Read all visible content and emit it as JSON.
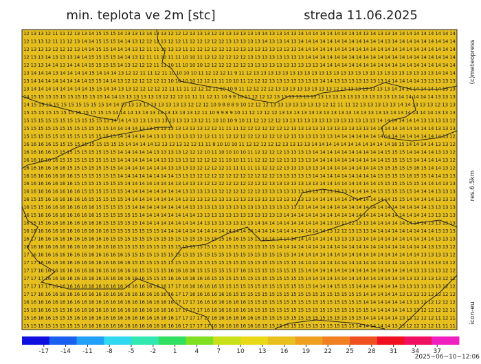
{
  "header": {
    "title": "min. teplota ve 2m [stc]",
    "date": "streda 11.06.2025"
  },
  "side": {
    "copyright": "(c)meteopress",
    "resolution": "res.6.5km",
    "model": "icon-eu"
  },
  "footer": {
    "timestamp": "2025−06−10−12:06"
  },
  "map": {
    "fill": "#e6bf1e",
    "rows": [
      "12 13 13 12 11 11 12 13 13 14 15 15 15 14 13 13 13 14 13 13 12 12 12 13 13 13 12 13 13 13 13 13 14 14 13 13 14 13 14 14 14 14 14 14 14 14 14 13 14 13 13 14 14 14 14 14 14 14 14 14",
      "12 13 13 12 11 11 12 13 14 14 15 15 15 14 14 13 12 12 12 13 12 12 11 12 12 12 12 12 13 13 13 13 13 14 13 13 14 13 14 14 14 14 14 14 14 14 14 14 14 14 13 14 14 14 14 14 14 14 14 14",
      "12 13 13 13 12 12 12 13 14 14 15 15 14 14 14 13 12 11 11 10 13 13 11 11 12 12 12 12 12 13 13 13 13 13 13 13 13 13 14 14 14 14 14 14 14 14 14 14 14 14 14 14 14 14 14 14 14 14 14 14",
      "12 13 13 14 13 13 13 14 14 15 15 15 15 14 14 13 12 11 11 10 11 11 10 10 11 12 12 12 12 12 12 13 13 13 13 13 13 13 13 14 14 14 14 14 14 14 14 14 14 14 14 14 14 14 14 14 14 14 14 14",
      "12 13 13 14 14 13 14 14 14 15 15 15 15 14 13 12 12 12 11 11 10 11 10 10 10 12 12 12 12 12 12 13 13 13 13 13 13 13 13 13 13 14 14 14 14 14 14 14 14 14 14 14 14 14 14 14 14 14 14 14",
      "13 14 14 14 13 14 14 14 14 15 14 14 14 13 12 12 11 11 12 11 10 10 10 10 11 12 12 12 11 9 11 12 13 13 13 13 13 13 13 13 13 13 13 13 13 13 13 13 13 13 13 13 13 13 13 13 13 14 14 14",
      "13 14 14 14 14 14 14 14 14 15 15 14 14 13 12 12 12 12 12 11 10 10 10 10 12 12 11 11 10 10 11 12 12 12 13 13 13 13 13 13 13 14 14 13 13 13 13 13 13 13 14 14 14 14 14 13 13 13 13 13",
      "13 14 14 14 14 14 14 14 14 15 15 14 14 13 13 12 12 12 12 12 11 11 11 12 12 12 11 10 10 9 11 12 12 12 12 13 13 13 13 13 13 13 13 12 13 13 13 13 13 13 13 14 14 14 14 14 14 14 13 13",
      "14 15 15 15 15 15 15 15 15 15 15 14 14 13 13 13 13 13 13 12 12 12 11 11 11 12 11 10 9 9 10 11 12 12 12 13 13 13 13 13 13 13 13 13 13 13 13 13 13 13 13 13 14 14 14 14 14 13 13 13",
      "14 15 15 15 15 15 15 15 15 15 15 14 14 13 13 13 13 13 13 13 13 13 12 12 12 10 9 8 8 8 9 10 12 12 12 13 13 13 13 13 13 13 12 12 11 11 12 13 13 13 13 13 14 14 13 13 13 12 13 13",
      "15 15 15 15 15 15 15 15 15 15 15 15 14 14 14 13 13 13 13 13 13 13 13 12 11 10 9 9 8 9 10 11 12 12 12 12 13 13 13 13 13 13 13 13 13 13 13 13 13 13 13 13 13 14 14 14 14 13 13 13",
      "15 15 15 15 15 15 15 15 15 15 15 15 14 14 14 13 13 13 13 13 13 13 13 13 12 11 10 10 10 9 10 11 12 12 12 12 13 13 13 13 13 13 13 13 13 13 13 13 13 14 14 14 14 14 14 13 13 13 13 12",
      "15 15 15 15 15 15 15 15 15 15 15 15 14 14 14 14 13 13 13 13 13 13 13 13 13 12 12 11 11 11 12 12 12 12 12 12 12 13 13 13 13 13 13 13 13 13 13 13 14 14 14 14 14 14 14 14 14 13 13 13",
      "15 15 15 15 15 15 15 15 15 15 15 15 15 14 14 14 14 14 13 13 13 13 13 13 12 12 11 11 12 12 12 12 12 12 12 12 12 13 13 13 13 13 13 14 14 14 14 14 14 14 14 14 14 14 14 14 14 14 13 12",
      "16 16 16 16 15 15 15 15 15 15 15 15 15 15 14 14 14 14 13 13 13 13 12 12 11 11 8 10 10 10 11 12 12 12 12 12 13 13 13 13 14 14 14 14 14 14 14 14 14 14 14 16 15 14 14 14 14 13 13 12",
      "16 16 16 16 15 15 15 15 15 15 15 15 15 14 14 14 14 14 13 13 13 13 12 12 12 10 11 10 10 10 10 11 12 12 12 12 13 13 13 13 14 14 14 14 14 14 14 14 14 14 15 15 15 14 14 14 14 13 13 12",
      "16 16 16 16 16 15 15 15 15 15 15 15 15 14 14 14 14 14 14 13 13 13 13 12 12 12 12 11 10 10 11 11 12 12 12 12 13 13 13 13 14 14 14 14 14 14 14 14 14 14 15 15 15 15 14 14 14 14 13 12",
      "16 16 16 16 16 16 15 15 15 15 15 15 15 14 14 14 14 14 14 14 13 13 13 13 12 12 12 12 11 11 11 11 11 12 12 12 13 13 13 13 13 14 14 14 14 14 14 14 14 15 15 15 15 15 16 15 14 14 13 12",
      "16 16 16 16 16 16 16 15 15 15 15 15 15 14 14 14 14 14 14 14 14 13 13 13 12 12 12 12 12 12 12 12 12 12 12 13 13 13 13 13 14 14 14 14 14 14 14 14 14 15 15 15 15 16 15 15 14 14 13 13",
      "16 16 16 16 16 16 16 15 15 15 15 15 15 15 14 14 14 14 14 14 14 13 13 13 13 12 12 12 12 12 12 12 12 12 13 13 13 13 13 13 13 14 14 14 14 14 14 14 14 15 15 15 15 15 15 14 14 14 13 13",
      "16 16 16 16 16 16 16 16 15 15 15 15 15 15 14 14 14 14 14 14 14 14 13 13 13 13 13 12 12 12 12 12 12 13 13 13 13 13 13 13 13 13 13 13 13 14 14 14 14 15 15 15 15 15 14 14 14 13 13 13",
      "16 15 15 16 16 16 16 16 16 15 15 15 15 15 14 14 14 14 14 14 14 14 13 13 13 13 13 13 13 13 13 13 13 13 13 13 13 13 13 13 14 14 14 14 14 14 14 14 14 14 14 15 15 14 14 14 14 13 13 13",
      "16 15 15 16 16 16 16 16 16 16 15 15 15 15 15 14 14 14 14 14 14 14 14 13 13 13 13 13 13 13 13 13 13 13 13 13 13 13 13 14 14 14 14 14 14 14 14 14 14 14 14 14 14 14 14 14 13 13 13 13",
      "16 15 16 16 16 16 16 16 16 16 15 15 15 15 15 15 14 14 14 14 14 14 14 14 13 13 13 13 13 13 13 13 13 13 13 13 14 14 14 14 14 14 14 14 14 14 14 14 14 14 14 14 14 14 14 14 13 13 13 13",
      "16 15 15 16 16 16 16 16 16 16 16 15 15 15 15 15 14 14 14 14 14 14 14 14 14 13 13 13 13 13 13 13 14 14 14 14 14 14 14 14 14 14 13 10 11 12 13 13 14 14 14 14 14 14 14 14 13 13 13 13",
      "16 16 16 16 16 16 16 16 16 16 16 16 15 15 15 15 15 15 15 14 14 14 14 14 14 14 14 14 14 14 14 14 14 14 14 14 14 14 14 14 14 14 13 12 12 13 13 13 14 14 14 14 14 14 14 14 14 13 13 13",
      "16 17 16 16 16 16 16 16 16 16 16 16 15 15 15 15 15 15 15 15 15 15 15 15 15 15 15 15 16 16 15 15 15 14 14 14 14 14 14 14 14 14 14 13 13 13 13 14 14 14 14 14 14 14 14 14 14 13 13 13",
      "16 16 16 16 16 16 16 16 16 16 16 16 16 15 15 15 15 15 15 15 15 15 15 15 15 15 15 15 15 15 15 15 15 15 15 14 14 14 14 14 14 14 14 14 14 14 14 14 14 14 14 14 14 14 14 14 13 13 13 12",
      "17 16 16 16 16 16 16 16 16 16 16 16 16 16 15 15 15 15 15 15 15 15 15 15 15 15 15 15 15 15 15 15 15 15 15 15 15 14 14 14 14 14 14 14 14 14 14 14 14 14 14 14 14 14 14 13 13 13 13 12",
      "17 17 16 16 16 16 16 16 16 16 16 16 16 16 16 15 15 15 15 15 15 15 15 15 15 15 15 15 15 15 15 15 15 15 15 15 15 15 14 14 14 14 14 14 14 14 14 14 14 14 14 14 14 14 13 13 13 13 13 12",
      "17 17 16 16 16 16 16 16 16 16 16 16 16 16 16 16 15 15 15 15 16 16 16 16 15 15 15 15 15 17 16 15 15 15 15 15 15 15 15 14 14 14 14 14 14 14 14 14 14 14 14 14 14 14 13 13 13 13 12 12",
      "17 17 17 16 16 16 16 16 16 16 16 16 16 16 16 16 16 15 15 15 16 16 16 16 16 16 15 15 15 15 15 15 15 15 15 15 15 15 15 14 14 14 14 14 14 14 14 14 14 14 14 14 14 13 13 13 13 13 12 12",
      "17 17 17 17 16 16 16 16 16 16 16 16 16 16 16 16 16 16 16 16 17 17 16 16 16 16 16 15 15 15 15 15 15 15 15 15 15 15 15 15 14 14 14 15 15 15 14 14 14 14 14 14 13 13 13 13 13 13 12 12",
      "17 17 16 16 16 16 16 16 16 16 16 16 16 16 16 16 16 16 16 16 16 17 17 16 16 16 16 16 16 15 15 15 15 15 15 15 15 15 15 15 15 15 15 15 15 15 15 14 14 14 14 14 13 13 13 13 13 13 12 12",
      "16 16 16 16 16 16 16 16 16 16 16 16 16 16 16 16 16 16 16 16 16 17 17 17 16 16 16 16 16 16 16 15 15 15 15 15 15 15 15 15 15 15 15 15 15 15 15 14 14 14 14 14 14 13 13 12 12 12 12 12",
      "15 16 16 16 15 15 16 16 16 16 16 16 16 16 16 16 16 16 16 16 16 17 17 17 17 16 16 16 16 16 16 16 15 15 15 15 15 15 15 15 15 15 15 15 15 15 15 15 14 14 14 14 14 13 13 12 12 12 12 11",
      "15 16 16 16 15 15 15 16 16 16 16 16 16 16 16 16 16 16 16 16 16 17 17 17 17 17 16 16 16 16 16 16 16 15 15 15 15 15 15 15 15 15 15 15 15 15 15 14 14 14 14 14 13 13 12 12 12 11 12 11",
      "15 15 15 15 15 15 15 15 16 16 16 16 16 16 16 16 16 16 16 16 16 16 17 17 17 17 16 16 16 16 16 16 16 15 15 15 15 15 15 15 15 15 15 15 15 15 14 14 14 14 14 13 13 12 12 12 12 11 11 11"
    ]
  },
  "colorbar": {
    "range": [
      -20,
      40
    ],
    "colors": [
      "#1010e0",
      "#1a60f0",
      "#20a0f8",
      "#30d8f0",
      "#30e8b0",
      "#30e060",
      "#80e020",
      "#c8e018",
      "#e8d818",
      "#e8c01e",
      "#f0a020",
      "#f08020",
      "#f05020",
      "#f01020",
      "#f01060",
      "#f020c0"
    ],
    "ticks": [
      -17,
      -14,
      -11,
      -8,
      -5,
      -2,
      1,
      4,
      7,
      10,
      13,
      16,
      19,
      22,
      25,
      28,
      31,
      34,
      37
    ]
  }
}
